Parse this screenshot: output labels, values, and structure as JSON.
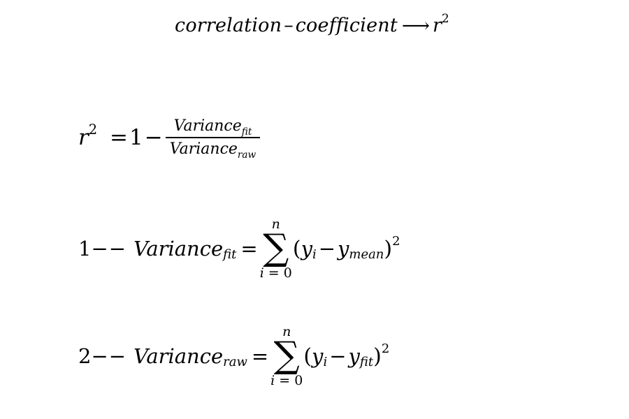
{
  "header": {
    "word1": "correlation",
    "dash": "–",
    "word2": "coefficient",
    "arrow": "⟶",
    "target_base": "r",
    "target_exp": "2"
  },
  "r2_formula": {
    "lhs_base": "r",
    "lhs_exp": "2",
    "equals": "=",
    "one": "1",
    "minus": "−",
    "numerator_base": "Variance",
    "numerator_sub": "fit",
    "denominator_base": "Variance",
    "denominator_sub": "raw"
  },
  "fit_formula": {
    "number": "1",
    "dashes": "−−",
    "base": "Variance",
    "sub": "fit",
    "equals": "=",
    "sum_upper": "n",
    "sum_symbol": "∑",
    "sum_lower_var": "i",
    "sum_lower_eq": " = ",
    "sum_lower_start": "0",
    "open_paren": "(",
    "term1_base": "y",
    "term1_sub": "i",
    "minus": "−",
    "term2_base": "y",
    "term2_sub": "mean",
    "close_paren": ")",
    "exp": "2"
  },
  "raw_formula": {
    "number": "2",
    "dashes": "−−",
    "base": "Variance",
    "sub": "raw",
    "equals": "=",
    "sum_upper": "n",
    "sum_symbol": "∑",
    "sum_lower_var": "i",
    "sum_lower_eq": " = ",
    "sum_lower_start": "0",
    "open_paren": "(",
    "term1_base": "y",
    "term1_sub": "i",
    "minus": "−",
    "term2_base": "y",
    "term2_sub": "fit",
    "close_paren": ")",
    "exp": "2"
  }
}
